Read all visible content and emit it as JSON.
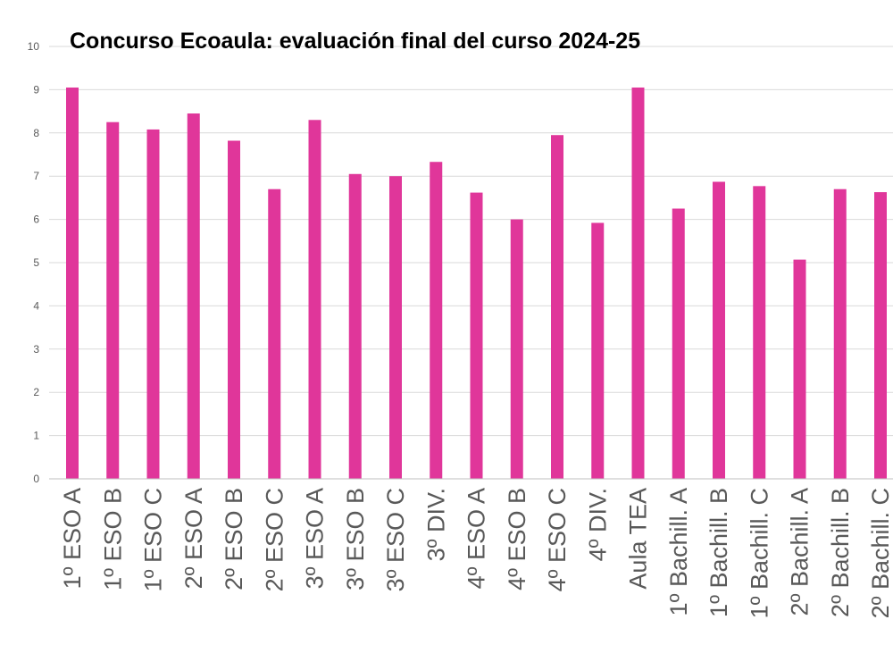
{
  "chart_data": {
    "type": "bar",
    "title": "Concurso Ecoaula: evaluación final del curso 2024-25",
    "xlabel": "",
    "ylabel": "",
    "ylim": [
      0,
      10
    ],
    "yticks": [
      "0",
      "1",
      "2",
      "3",
      "4",
      "5",
      "6",
      "7",
      "8",
      "9",
      "10"
    ],
    "grid": true,
    "legend": "none",
    "bar_color": "#e0369a",
    "categories": [
      "1º ESO A",
      "1º ESO B",
      "1º ESO C",
      "2º ESO A",
      "2º ESO B",
      "2º ESO C",
      "3º ESO A",
      "3º ESO B",
      "3º ESO C",
      "3º DIV.",
      "4º ESO A",
      "4º ESO B",
      "4º ESO C",
      "4º DIV.",
      "Aula TEA",
      "1º Bachill. A",
      "1º Bachill. B",
      "1º Bachill. C",
      "2º Bachill. A",
      "2º Bachill. B",
      "2º Bachill. C"
    ],
    "values": [
      9.05,
      8.25,
      8.08,
      8.45,
      7.82,
      6.7,
      8.3,
      7.05,
      7.0,
      7.33,
      6.62,
      6.0,
      7.95,
      5.92,
      9.05,
      6.25,
      6.87,
      6.77,
      5.07,
      6.7,
      6.63
    ]
  }
}
